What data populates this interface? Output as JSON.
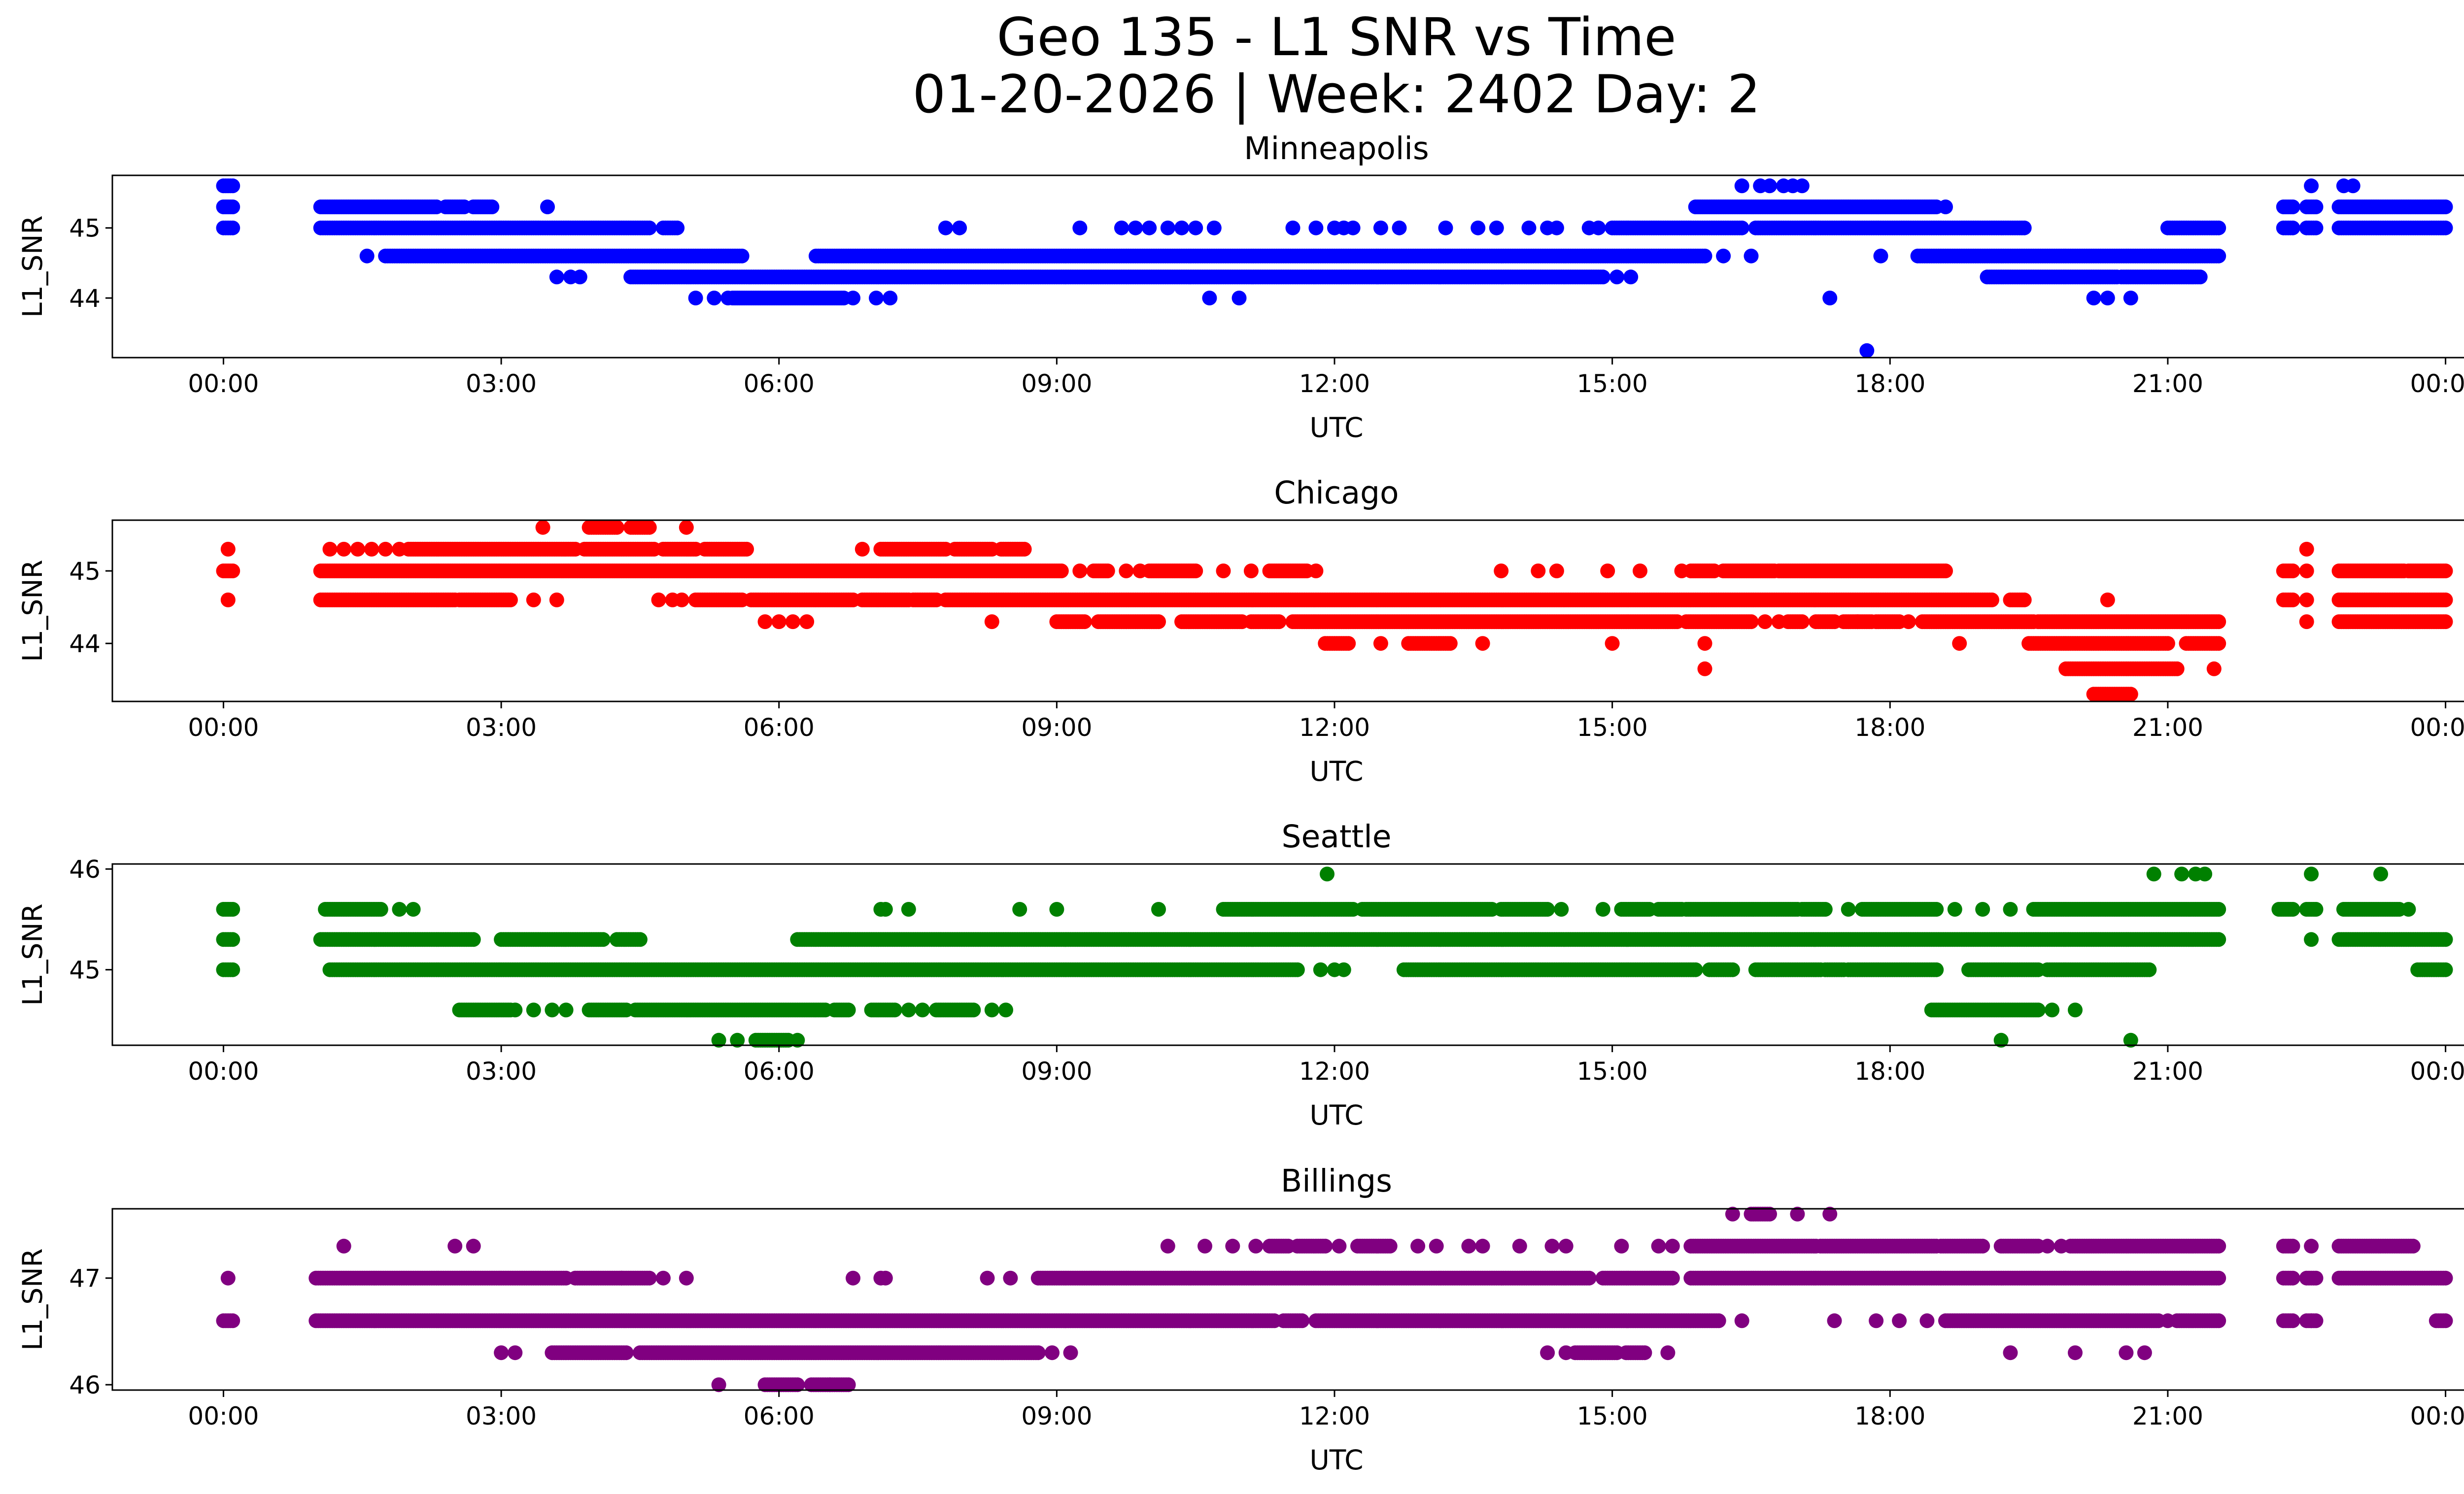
{
  "figure": {
    "title_line1": "Geo 135 - L1 SNR vs Time",
    "title_line2": "01-20-2026 | Week: 2402 Day: 2"
  },
  "chart_data": [
    {
      "type": "scatter",
      "title": "Minneapolis",
      "xlabel": "UTC",
      "ylabel": "L1_SNR",
      "color": "#0000ff",
      "xticks": [
        "00:00",
        "03:00",
        "06:00",
        "09:00",
        "12:00",
        "15:00",
        "18:00",
        "21:00",
        "00:00"
      ],
      "xlim_hours": [
        -1.2,
        25.2
      ],
      "ylim": [
        43.15,
        45.75
      ],
      "yticks": [
        44,
        45
      ],
      "bands": [
        {
          "y": 45.6,
          "ranges": [
            [
              0.0,
              0.1
            ]
          ],
          "points": [
            16.4,
            16.6,
            16.7,
            16.85,
            16.95,
            17.05,
            22.55,
            22.9,
            23.0
          ]
        },
        {
          "y": 45.3,
          "ranges": [
            [
              0.0,
              0.1
            ],
            [
              1.05,
              2.3
            ],
            [
              2.4,
              2.6
            ],
            [
              2.7,
              2.9
            ],
            [
              15.9,
              18.5
            ],
            [
              22.25,
              22.35
            ],
            [
              22.5,
              22.6
            ],
            [
              22.85,
              24.0
            ]
          ],
          "points": [
            3.5,
            18.6
          ]
        },
        {
          "y": 45.0,
          "ranges": [
            [
              0.0,
              0.1
            ],
            [
              1.05,
              4.6
            ],
            [
              4.75,
              4.9
            ],
            [
              15.0,
              16.4
            ],
            [
              16.55,
              19.45
            ],
            [
              21.0,
              21.55
            ],
            [
              22.25,
              22.35
            ],
            [
              22.5,
              22.6
            ],
            [
              22.85,
              24.0
            ]
          ],
          "points": [
            7.8,
            7.95,
            9.25,
            9.7,
            9.85,
            10.0,
            10.2,
            10.35,
            10.5,
            10.7,
            11.55,
            11.8,
            12.0,
            12.1,
            12.2,
            12.5,
            12.7,
            13.2,
            13.55,
            13.75,
            14.1,
            14.3,
            14.4,
            14.75,
            14.85
          ]
        },
        {
          "y": 44.6,
          "ranges": [
            [
              1.75,
              5.6
            ],
            [
              6.4,
              16.0
            ],
            [
              18.3,
              21.55
            ]
          ],
          "points": [
            1.55,
            16.2,
            16.5,
            17.9
          ]
        },
        {
          "y": 44.3,
          "ranges": [
            [
              4.4,
              14.9
            ],
            [
              19.05,
              20.45
            ],
            [
              20.5,
              21.35
            ]
          ],
          "points": [
            3.6,
            3.75,
            3.85,
            15.05,
            15.2
          ]
        },
        {
          "y": 44.0,
          "ranges": [
            [
              5.5,
              6.7
            ]
          ],
          "points": [
            5.1,
            5.3,
            5.45,
            6.8,
            7.05,
            7.2,
            10.65,
            10.97,
            17.35,
            20.2,
            20.35,
            20.6
          ]
        },
        {
          "y": 43.25,
          "ranges": [],
          "points": [
            17.75
          ]
        }
      ]
    },
    {
      "type": "scatter",
      "title": "Chicago",
      "xlabel": "UTC",
      "ylabel": "L1_SNR",
      "color": "#ff0000",
      "xticks": [
        "00:00",
        "03:00",
        "06:00",
        "09:00",
        "12:00",
        "15:00",
        "18:00",
        "21:00",
        "00:00"
      ],
      "xlim_hours": [
        -1.2,
        25.2
      ],
      "ylim": [
        43.2,
        45.7
      ],
      "yticks": [
        44,
        45
      ],
      "bands": [
        {
          "y": 45.6,
          "ranges": [
            [
              3.95,
              4.25
            ],
            [
              4.4,
              4.6
            ]
          ],
          "points": [
            3.45,
            5.0
          ]
        },
        {
          "y": 45.3,
          "ranges": [
            [
              2.0,
              3.8
            ],
            [
              3.9,
              4.65
            ],
            [
              4.75,
              5.1
            ],
            [
              5.2,
              5.65
            ],
            [
              7.1,
              7.8
            ],
            [
              7.9,
              8.3
            ],
            [
              8.4,
              8.65
            ]
          ],
          "points": [
            0.05,
            1.15,
            1.3,
            1.45,
            1.6,
            1.75,
            1.9,
            6.9,
            22.5
          ]
        },
        {
          "y": 45.0,
          "ranges": [
            [
              0.0,
              0.1
            ],
            [
              1.05,
              9.05
            ],
            [
              9.4,
              9.55
            ],
            [
              10.0,
              10.5
            ],
            [
              11.3,
              11.7
            ],
            [
              15.85,
              16.1
            ],
            [
              16.2,
              16.75
            ],
            [
              16.8,
              18.6
            ],
            [
              22.25,
              22.35
            ],
            [
              22.85,
              23.55
            ],
            [
              23.6,
              24.0
            ]
          ],
          "points": [
            9.25,
            9.75,
            9.9,
            10.8,
            11.1,
            11.8,
            13.8,
            14.2,
            14.4,
            14.95,
            15.3,
            15.75,
            22.5
          ]
        },
        {
          "y": 44.6,
          "ranges": [
            [
              1.05,
              2.5
            ],
            [
              2.55,
              3.1
            ],
            [
              5.1,
              5.6
            ],
            [
              5.7,
              6.8
            ],
            [
              6.9,
              7.4
            ],
            [
              7.45,
              7.7
            ],
            [
              7.8,
              19.1
            ],
            [
              19.3,
              19.45
            ],
            [
              22.25,
              22.35
            ],
            [
              22.85,
              24.0
            ]
          ],
          "points": [
            0.05,
            3.35,
            3.6,
            4.7,
            4.85,
            4.95,
            20.35,
            22.5
          ]
        },
        {
          "y": 44.3,
          "ranges": [
            [
              9.0,
              9.3
            ],
            [
              9.45,
              10.1
            ],
            [
              10.35,
              11.0
            ],
            [
              11.1,
              11.4
            ],
            [
              11.55,
              15.7
            ],
            [
              15.8,
              16.5
            ],
            [
              16.9,
              17.05
            ],
            [
              17.2,
              17.4
            ],
            [
              17.5,
              17.8
            ],
            [
              17.85,
              18.1
            ],
            [
              18.35,
              19.55
            ],
            [
              19.6,
              21.55
            ],
            [
              22.85,
              24.0
            ]
          ],
          "points": [
            5.85,
            6.0,
            6.15,
            6.3,
            8.3,
            16.65,
            16.8,
            17.65,
            18.2,
            22.5
          ]
        },
        {
          "y": 44.0,
          "ranges": [
            [
              11.9,
              12.15
            ],
            [
              12.8,
              13.25
            ],
            [
              19.5,
              21.0
            ],
            [
              21.2,
              21.55
            ]
          ],
          "points": [
            12.5,
            13.6,
            15.0,
            16.0,
            18.75
          ]
        },
        {
          "y": 43.65,
          "ranges": [
            [
              19.9,
              21.1
            ]
          ],
          "points": [
            16.0,
            21.5
          ]
        },
        {
          "y": 43.3,
          "ranges": [
            [
              20.2,
              20.6
            ]
          ],
          "points": []
        }
      ]
    },
    {
      "type": "scatter",
      "title": "Seattle",
      "xlabel": "UTC",
      "ylabel": "L1_SNR",
      "color": "#008000",
      "xticks": [
        "00:00",
        "03:00",
        "06:00",
        "09:00",
        "12:00",
        "15:00",
        "18:00",
        "21:00",
        "00:00"
      ],
      "xlim_hours": [
        -1.2,
        25.2
      ],
      "ylim": [
        44.25,
        46.05
      ],
      "yticks": [
        45,
        46
      ],
      "bands": [
        {
          "y": 45.95,
          "ranges": [],
          "points": [
            11.92,
            20.85,
            21.15,
            21.3,
            21.4,
            22.55,
            23.3
          ]
        },
        {
          "y": 45.6,
          "ranges": [
            [
              0.0,
              0.1
            ],
            [
              1.1,
              1.7
            ],
            [
              10.8,
              12.2
            ],
            [
              12.3,
              13.7
            ],
            [
              13.8,
              14.3
            ],
            [
              15.1,
              15.4
            ],
            [
              15.5,
              15.75
            ],
            [
              15.8,
              17.0
            ],
            [
              17.05,
              17.3
            ],
            [
              17.7,
              18.5
            ],
            [
              19.55,
              21.55
            ],
            [
              22.2,
              22.35
            ],
            [
              22.5,
              22.6
            ],
            [
              22.9,
              23.5
            ]
          ],
          "points": [
            1.9,
            2.05,
            7.1,
            7.15,
            7.4,
            8.6,
            9.0,
            10.1,
            14.45,
            14.9,
            17.55,
            18.7,
            19.0,
            19.3,
            23.6
          ]
        },
        {
          "y": 45.3,
          "ranges": [
            [
              0.0,
              0.1
            ],
            [
              1.05,
              2.7
            ],
            [
              3.0,
              4.1
            ],
            [
              4.25,
              4.5
            ],
            [
              6.2,
              21.55
            ],
            [
              22.85,
              24.0
            ]
          ],
          "points": [
            22.55
          ]
        },
        {
          "y": 45.0,
          "ranges": [
            [
              0.0,
              0.1
            ],
            [
              1.15,
              11.6
            ],
            [
              12.75,
              15.9
            ],
            [
              16.05,
              16.3
            ],
            [
              16.55,
              17.25
            ],
            [
              17.3,
              17.5
            ],
            [
              17.55,
              18.5
            ],
            [
              18.85,
              19.6
            ],
            [
              19.7,
              20.8
            ],
            [
              23.7,
              24.0
            ]
          ],
          "points": [
            11.85,
            12.0,
            12.1
          ]
        },
        {
          "y": 44.6,
          "ranges": [
            [
              2.55,
              3.1
            ],
            [
              3.95,
              4.35
            ],
            [
              4.45,
              6.5
            ],
            [
              6.6,
              6.75
            ],
            [
              7.0,
              7.25
            ],
            [
              7.7,
              8.1
            ],
            [
              18.45,
              19.6
            ]
          ],
          "points": [
            3.15,
            3.35,
            3.55,
            3.7,
            7.4,
            7.55,
            8.3,
            8.45,
            19.75,
            20.0
          ]
        },
        {
          "y": 44.3,
          "ranges": [
            [
              5.75,
              6.1
            ]
          ],
          "points": [
            5.35,
            5.55,
            6.2,
            19.2,
            20.6
          ]
        }
      ]
    },
    {
      "type": "scatter",
      "title": "Billings",
      "xlabel": "UTC",
      "ylabel": "L1_SNR",
      "color": "#800080",
      "xticks": [
        "00:00",
        "03:00",
        "06:00",
        "09:00",
        "12:00",
        "15:00",
        "18:00",
        "21:00",
        "00:00"
      ],
      "xlim_hours": [
        -1.2,
        25.2
      ],
      "ylim": [
        45.95,
        47.65
      ],
      "yticks": [
        46,
        47
      ],
      "bands": [
        {
          "y": 47.6,
          "ranges": [
            [
              16.5,
              16.7
            ]
          ],
          "points": [
            16.3,
            17.0,
            17.35
          ]
        },
        {
          "y": 47.3,
          "ranges": [
            [
              11.3,
              11.5
            ],
            [
              11.6,
              11.9
            ],
            [
              12.25,
              12.6
            ],
            [
              15.85,
              17.2
            ],
            [
              17.25,
              18.5
            ],
            [
              18.55,
              19.0
            ],
            [
              19.2,
              19.6
            ],
            [
              19.95,
              21.55
            ],
            [
              22.25,
              22.35
            ],
            [
              22.85,
              23.65
            ]
          ],
          "points": [
            1.3,
            2.5,
            2.7,
            10.2,
            10.6,
            10.9,
            11.15,
            12.05,
            12.9,
            13.1,
            13.45,
            13.6,
            14.0,
            14.35,
            14.5,
            15.1,
            15.5,
            15.65,
            19.7,
            19.85,
            22.55
          ]
        },
        {
          "y": 47.0,
          "ranges": [
            [
              1.0,
              3.7
            ],
            [
              3.8,
              4.6
            ],
            [
              8.8,
              14.75
            ],
            [
              14.9,
              15.65
            ],
            [
              15.85,
              21.55
            ],
            [
              22.25,
              22.35
            ],
            [
              22.5,
              22.6
            ],
            [
              22.85,
              24.0
            ]
          ],
          "points": [
            0.05,
            4.3,
            4.75,
            5.0,
            6.8,
            7.1,
            7.15,
            8.25,
            8.5
          ]
        },
        {
          "y": 46.6,
          "ranges": [
            [
              0.0,
              0.1
            ],
            [
              1.0,
              11.35
            ],
            [
              11.45,
              11.65
            ],
            [
              11.8,
              16.15
            ],
            [
              18.6,
              20.9
            ],
            [
              21.1,
              21.55
            ],
            [
              22.25,
              22.35
            ],
            [
              22.5,
              22.6
            ],
            [
              23.9,
              24.0
            ]
          ],
          "points": [
            16.4,
            17.4,
            17.85,
            18.1,
            18.4,
            21.0,
            22.55
          ]
        },
        {
          "y": 46.3,
          "ranges": [
            [
              3.55,
              4.35
            ],
            [
              4.5,
              8.8
            ],
            [
              14.6,
              15.05
            ],
            [
              15.15,
              15.35
            ]
          ],
          "points": [
            3.0,
            3.15,
            8.95,
            9.15,
            14.3,
            14.5,
            15.6,
            19.3,
            20.0,
            20.55,
            20.75
          ]
        },
        {
          "y": 46.0,
          "ranges": [
            [
              5.85,
              6.2
            ],
            [
              6.35,
              6.75
            ]
          ],
          "points": [
            5.35,
            6.55
          ]
        }
      ]
    }
  ]
}
